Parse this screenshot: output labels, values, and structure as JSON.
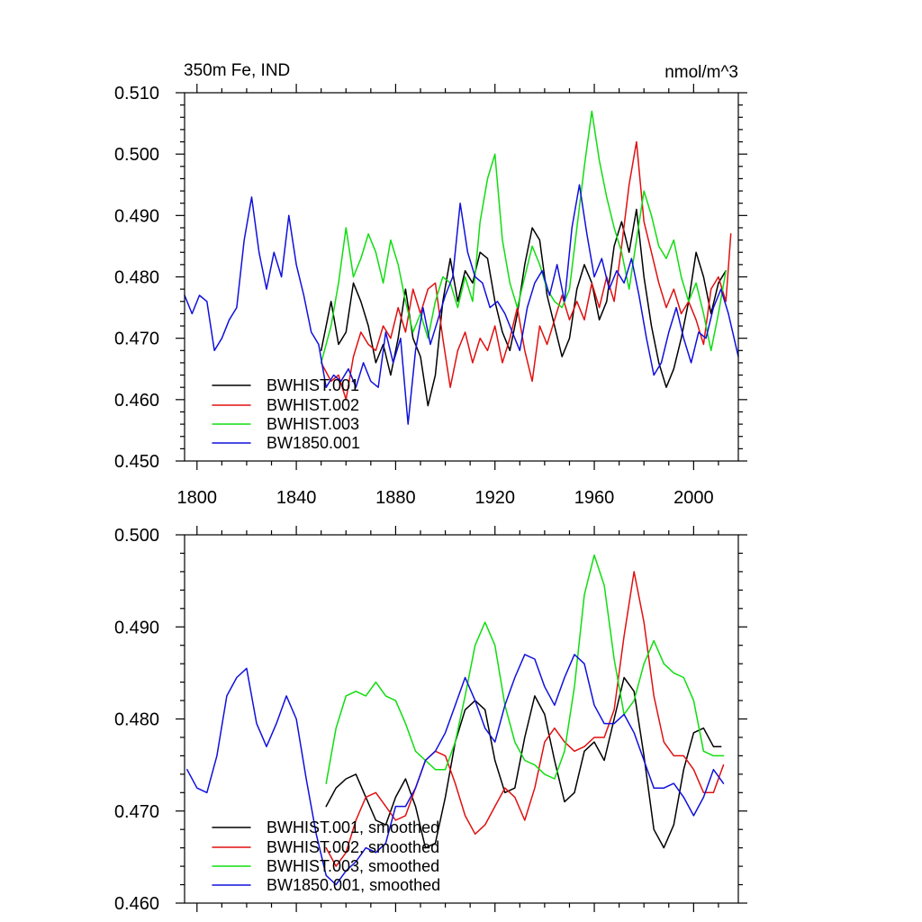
{
  "colors": {
    "BWHIST.001": "#000000",
    "BWHIST.002": "#e01010",
    "BWHIST.003": "#10dd10",
    "BW1850.001": "#1010dd"
  },
  "chart_data": [
    {
      "type": "line",
      "title": "350m Fe, IND",
      "units": "nmol/m^3",
      "xlim": [
        1795,
        2018
      ],
      "ylim": [
        0.45,
        0.51
      ],
      "xticks": [
        1800,
        1840,
        1880,
        1920,
        1960,
        2000
      ],
      "xtick_labels": [
        "1800",
        "1840",
        "1880",
        "1920",
        "1960",
        "2000"
      ],
      "yticks": [
        0.45,
        0.46,
        0.47,
        0.48,
        0.49,
        0.5,
        0.51
      ],
      "ytick_labels": [
        "0.450",
        "0.460",
        "0.470",
        "0.480",
        "0.490",
        "0.500",
        "0.510"
      ],
      "legend_position": "lower-left",
      "legend": [
        "BWHIST.001",
        "BWHIST.002",
        "BWHIST.003",
        "BW1850.001"
      ],
      "series": [
        {
          "name": "BWHIST.001",
          "x": [
            1850,
            1854,
            1857,
            1860,
            1863,
            1866,
            1869,
            1872,
            1875,
            1878,
            1881,
            1884,
            1887,
            1890,
            1893,
            1896,
            1899,
            1902,
            1905,
            1908,
            1911,
            1914,
            1917,
            1920,
            1923,
            1926,
            1929,
            1932,
            1935,
            1938,
            1941,
            1944,
            1947,
            1950,
            1953,
            1956,
            1959,
            1962,
            1965,
            1968,
            1971,
            1974,
            1977,
            1980,
            1983,
            1986,
            1989,
            1992,
            1995,
            1998,
            2001,
            2004,
            2007,
            2010,
            2013
          ],
          "values": [
            0.468,
            0.476,
            0.469,
            0.471,
            0.479,
            0.476,
            0.472,
            0.466,
            0.469,
            0.464,
            0.47,
            0.478,
            0.47,
            0.467,
            0.459,
            0.464,
            0.476,
            0.483,
            0.476,
            0.481,
            0.479,
            0.484,
            0.483,
            0.476,
            0.471,
            0.468,
            0.474,
            0.482,
            0.488,
            0.486,
            0.477,
            0.472,
            0.467,
            0.47,
            0.478,
            0.482,
            0.479,
            0.473,
            0.476,
            0.485,
            0.489,
            0.484,
            0.491,
            0.48,
            0.472,
            0.466,
            0.462,
            0.465,
            0.47,
            0.476,
            0.484,
            0.48,
            0.474,
            0.479,
            0.481
          ]
        },
        {
          "name": "BWHIST.002",
          "x": [
            1850,
            1854,
            1857,
            1860,
            1863,
            1866,
            1869,
            1872,
            1875,
            1878,
            1881,
            1884,
            1887,
            1890,
            1893,
            1896,
            1899,
            1902,
            1905,
            1908,
            1911,
            1914,
            1917,
            1920,
            1923,
            1926,
            1929,
            1932,
            1935,
            1938,
            1941,
            1944,
            1947,
            1950,
            1953,
            1956,
            1959,
            1962,
            1965,
            1968,
            1971,
            1974,
            1977,
            1980,
            1983,
            1986,
            1989,
            1992,
            1995,
            1998,
            2001,
            2004,
            2007,
            2010,
            2013,
            2015
          ],
          "values": [
            0.466,
            0.463,
            0.464,
            0.46,
            0.467,
            0.471,
            0.469,
            0.468,
            0.472,
            0.47,
            0.475,
            0.471,
            0.478,
            0.474,
            0.478,
            0.479,
            0.47,
            0.462,
            0.468,
            0.471,
            0.466,
            0.47,
            0.468,
            0.472,
            0.466,
            0.47,
            0.475,
            0.468,
            0.463,
            0.472,
            0.469,
            0.473,
            0.477,
            0.473,
            0.476,
            0.473,
            0.479,
            0.475,
            0.48,
            0.476,
            0.485,
            0.495,
            0.502,
            0.489,
            0.484,
            0.479,
            0.475,
            0.478,
            0.474,
            0.476,
            0.473,
            0.469,
            0.478,
            0.48,
            0.476,
            0.487
          ]
        },
        {
          "name": "BWHIST.003",
          "x": [
            1850,
            1854,
            1857,
            1860,
            1863,
            1866,
            1869,
            1872,
            1875,
            1878,
            1881,
            1884,
            1887,
            1890,
            1893,
            1896,
            1899,
            1902,
            1905,
            1908,
            1911,
            1914,
            1917,
            1920,
            1923,
            1926,
            1929,
            1932,
            1935,
            1938,
            1941,
            1944,
            1947,
            1950,
            1953,
            1956,
            1959,
            1962,
            1965,
            1968,
            1971,
            1974,
            1977,
            1980,
            1983,
            1986,
            1989,
            1992,
            1995,
            1998,
            2001,
            2004,
            2007,
            2010,
            2013
          ],
          "values": [
            0.466,
            0.472,
            0.479,
            0.488,
            0.48,
            0.483,
            0.487,
            0.484,
            0.479,
            0.486,
            0.482,
            0.476,
            0.471,
            0.474,
            0.47,
            0.476,
            0.48,
            0.479,
            0.475,
            0.48,
            0.476,
            0.489,
            0.496,
            0.5,
            0.486,
            0.479,
            0.475,
            0.48,
            0.485,
            0.482,
            0.478,
            0.476,
            0.475,
            0.478,
            0.488,
            0.498,
            0.507,
            0.499,
            0.493,
            0.488,
            0.484,
            0.478,
            0.486,
            0.494,
            0.49,
            0.485,
            0.483,
            0.486,
            0.48,
            0.476,
            0.479,
            0.474,
            0.468,
            0.474,
            0.481
          ]
        },
        {
          "name": "BW1850.001",
          "x": [
            1795,
            1798,
            1801,
            1804,
            1807,
            1810,
            1813,
            1816,
            1819,
            1822,
            1825,
            1828,
            1831,
            1834,
            1837,
            1840,
            1843,
            1846,
            1849,
            1852,
            1855,
            1858,
            1861,
            1864,
            1867,
            1870,
            1873,
            1876,
            1879,
            1882,
            1885,
            1888,
            1891,
            1894,
            1897,
            1900,
            1903,
            1906,
            1909,
            1912,
            1915,
            1918,
            1921,
            1924,
            1927,
            1930,
            1933,
            1936,
            1939,
            1942,
            1945,
            1948,
            1951,
            1954,
            1957,
            1960,
            1963,
            1966,
            1969,
            1972,
            1975,
            1978,
            1981,
            1984,
            1987,
            1990,
            1993,
            1996,
            1999,
            2002,
            2005,
            2008,
            2011,
            2014,
            2018
          ],
          "values": [
            0.477,
            0.474,
            0.477,
            0.476,
            0.468,
            0.47,
            0.473,
            0.475,
            0.486,
            0.493,
            0.484,
            0.478,
            0.484,
            0.48,
            0.49,
            0.482,
            0.477,
            0.471,
            0.469,
            0.462,
            0.464,
            0.463,
            0.465,
            0.462,
            0.466,
            0.463,
            0.462,
            0.471,
            0.466,
            0.47,
            0.456,
            0.468,
            0.475,
            0.469,
            0.473,
            0.477,
            0.48,
            0.492,
            0.484,
            0.48,
            0.479,
            0.475,
            0.476,
            0.474,
            0.471,
            0.468,
            0.475,
            0.479,
            0.481,
            0.477,
            0.482,
            0.476,
            0.488,
            0.495,
            0.487,
            0.48,
            0.483,
            0.478,
            0.481,
            0.479,
            0.483,
            0.477,
            0.47,
            0.464,
            0.466,
            0.471,
            0.475,
            0.47,
            0.466,
            0.471,
            0.47,
            0.475,
            0.478,
            0.474,
            0.467
          ]
        }
      ]
    },
    {
      "type": "line",
      "title": "",
      "xlim": [
        1795,
        2018
      ],
      "ylim": [
        0.46,
        0.5
      ],
      "xticks": [
        1800,
        1840,
        1880,
        1920,
        1960,
        2000
      ],
      "yticks": [
        0.46,
        0.47,
        0.48,
        0.49,
        0.5
      ],
      "ytick_labels": [
        "0.460",
        "0.470",
        "0.480",
        "0.490",
        "0.500"
      ],
      "legend_position": "lower-left",
      "legend": [
        "BWHIST.001, smoothed",
        "BWHIST.002, smoothed",
        "BWHIST.003, smoothed",
        "BW1850.001, smoothed"
      ],
      "series": [
        {
          "name": "BWHIST.001",
          "x": [
            1852,
            1856,
            1860,
            1864,
            1868,
            1872,
            1876,
            1880,
            1884,
            1888,
            1892,
            1896,
            1900,
            1904,
            1908,
            1912,
            1916,
            1920,
            1924,
            1928,
            1932,
            1936,
            1940,
            1944,
            1948,
            1952,
            1956,
            1960,
            1964,
            1968,
            1972,
            1976,
            1980,
            1984,
            1988,
            1992,
            1996,
            2000,
            2004,
            2008,
            2011
          ],
          "values": [
            0.4705,
            0.4725,
            0.4735,
            0.474,
            0.4715,
            0.469,
            0.4685,
            0.4715,
            0.4735,
            0.4705,
            0.466,
            0.4665,
            0.4715,
            0.4775,
            0.481,
            0.482,
            0.481,
            0.4755,
            0.472,
            0.4725,
            0.478,
            0.4825,
            0.4805,
            0.4755,
            0.471,
            0.472,
            0.4765,
            0.4775,
            0.4755,
            0.48,
            0.4845,
            0.483,
            0.476,
            0.468,
            0.466,
            0.4685,
            0.4745,
            0.4785,
            0.479,
            0.477,
            0.477
          ]
        },
        {
          "name": "BWHIST.002",
          "x": [
            1852,
            1856,
            1860,
            1864,
            1868,
            1872,
            1876,
            1880,
            1884,
            1888,
            1892,
            1896,
            1900,
            1904,
            1908,
            1912,
            1916,
            1920,
            1924,
            1928,
            1932,
            1936,
            1940,
            1944,
            1948,
            1952,
            1956,
            1960,
            1964,
            1968,
            1972,
            1976,
            1980,
            1984,
            1988,
            1992,
            1996,
            2000,
            2004,
            2008,
            2012
          ],
          "values": [
            0.466,
            0.464,
            0.4655,
            0.469,
            0.4715,
            0.472,
            0.4705,
            0.469,
            0.4695,
            0.4725,
            0.4755,
            0.4765,
            0.476,
            0.473,
            0.4695,
            0.4675,
            0.4685,
            0.4705,
            0.4725,
            0.4715,
            0.469,
            0.4725,
            0.4775,
            0.479,
            0.4775,
            0.4765,
            0.477,
            0.478,
            0.478,
            0.481,
            0.489,
            0.496,
            0.4905,
            0.4825,
            0.4775,
            0.476,
            0.476,
            0.4745,
            0.472,
            0.472,
            0.475
          ]
        },
        {
          "name": "BWHIST.003",
          "x": [
            1852,
            1856,
            1860,
            1864,
            1868,
            1872,
            1876,
            1880,
            1884,
            1888,
            1892,
            1896,
            1900,
            1904,
            1908,
            1912,
            1916,
            1920,
            1924,
            1928,
            1932,
            1936,
            1940,
            1944,
            1948,
            1952,
            1956,
            1960,
            1964,
            1968,
            1972,
            1976,
            1980,
            1984,
            1988,
            1992,
            1996,
            2000,
            2004,
            2008,
            2012
          ],
          "values": [
            0.473,
            0.479,
            0.4825,
            0.483,
            0.4825,
            0.484,
            0.4825,
            0.482,
            0.4795,
            0.4765,
            0.4755,
            0.4745,
            0.4745,
            0.4775,
            0.4825,
            0.488,
            0.4905,
            0.488,
            0.4815,
            0.4775,
            0.4755,
            0.475,
            0.474,
            0.4735,
            0.4765,
            0.4835,
            0.4935,
            0.4978,
            0.4945,
            0.4865,
            0.4805,
            0.482,
            0.486,
            0.4885,
            0.486,
            0.485,
            0.4845,
            0.482,
            0.4765,
            0.476,
            0.476
          ]
        },
        {
          "name": "BW1850.001",
          "x": [
            1796,
            1800,
            1804,
            1808,
            1812,
            1816,
            1820,
            1824,
            1828,
            1832,
            1836,
            1840,
            1844,
            1848,
            1852,
            1856,
            1860,
            1864,
            1868,
            1872,
            1876,
            1880,
            1884,
            1888,
            1892,
            1896,
            1900,
            1904,
            1908,
            1912,
            1916,
            1920,
            1924,
            1928,
            1932,
            1936,
            1940,
            1944,
            1948,
            1952,
            1956,
            1960,
            1964,
            1968,
            1972,
            1976,
            1980,
            1984,
            1988,
            1992,
            1996,
            2000,
            2004,
            2008,
            2012
          ],
          "values": [
            0.4745,
            0.4725,
            0.472,
            0.476,
            0.4825,
            0.4845,
            0.4855,
            0.4795,
            0.477,
            0.4795,
            0.4825,
            0.48,
            0.4735,
            0.4675,
            0.463,
            0.462,
            0.4635,
            0.4645,
            0.466,
            0.4655,
            0.4665,
            0.4705,
            0.4705,
            0.4725,
            0.4755,
            0.4765,
            0.4785,
            0.4815,
            0.4845,
            0.482,
            0.479,
            0.4775,
            0.4815,
            0.4845,
            0.487,
            0.4865,
            0.4835,
            0.4815,
            0.4845,
            0.487,
            0.486,
            0.4815,
            0.4795,
            0.4795,
            0.4805,
            0.4785,
            0.4755,
            0.4725,
            0.4725,
            0.473,
            0.4715,
            0.4695,
            0.4715,
            0.4745,
            0.473
          ]
        }
      ]
    }
  ]
}
